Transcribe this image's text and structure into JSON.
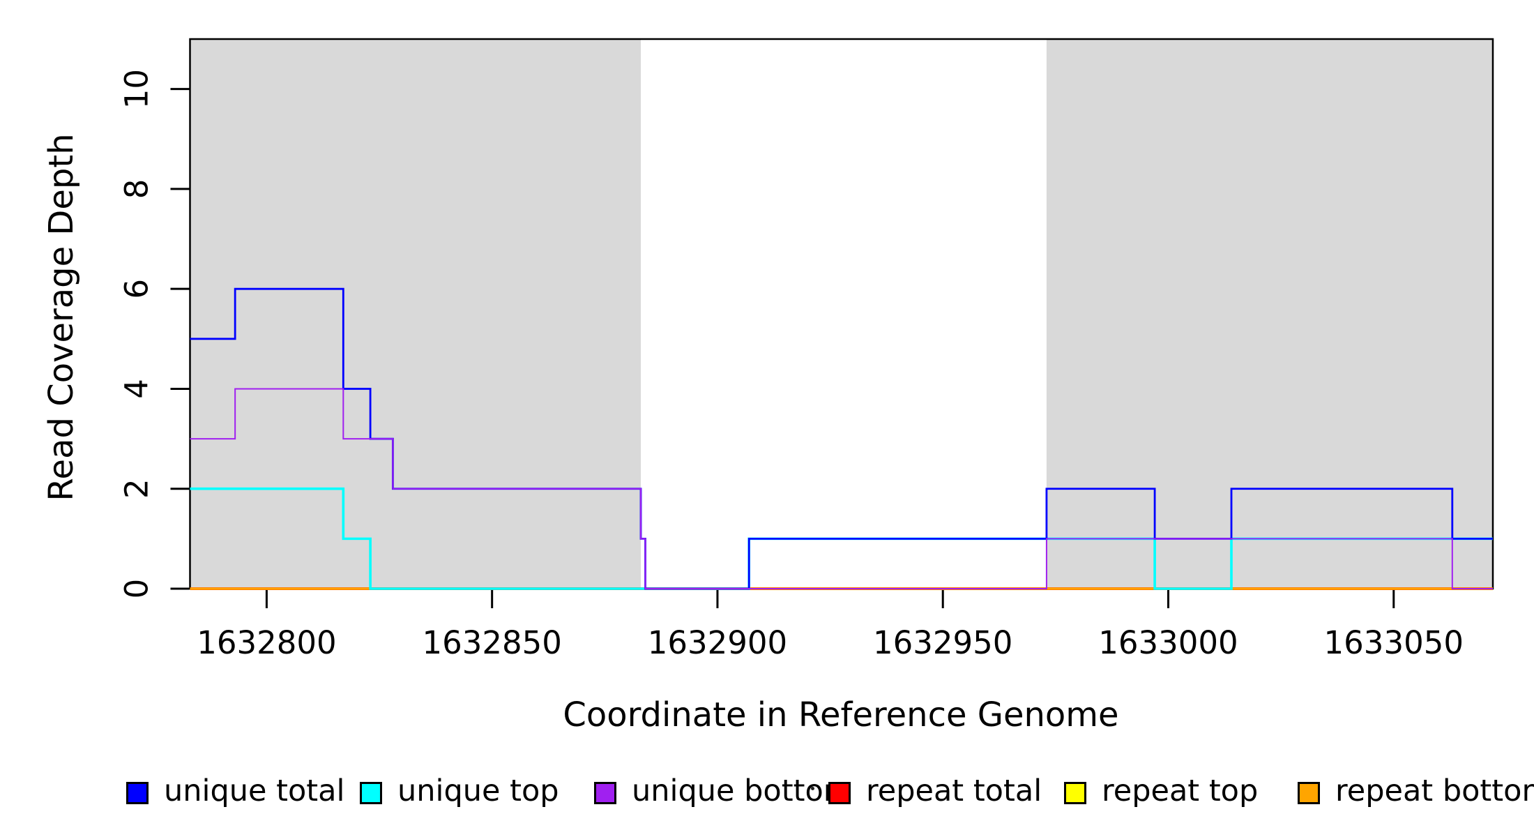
{
  "chart_data": {
    "type": "line",
    "subtype": "step-coverage-plot",
    "title": "",
    "xlabel": "Coordinate in Reference Genome",
    "ylabel": "Read Coverage Depth",
    "xlim": [
      1632783,
      1633072
    ],
    "ylim": [
      0,
      11
    ],
    "x_ticks": [
      1632800,
      1632850,
      1632900,
      1632950,
      1633000,
      1633050
    ],
    "y_ticks": [
      0,
      2,
      4,
      6,
      8,
      10
    ],
    "grid": false,
    "background_color": "#ffffff",
    "shaded_region_color": "#d9d9d9",
    "shaded_regions": [
      {
        "from": 1632783,
        "to": 1632883
      },
      {
        "from": 1632973,
        "to": 1633072
      }
    ],
    "series": [
      {
        "name": "repeat top",
        "color": "#FFFF00",
        "steps": [
          [
            1632783,
            0
          ],
          [
            1633072,
            0
          ]
        ]
      },
      {
        "name": "repeat total",
        "color": "#FF0000",
        "steps": [
          [
            1632783,
            0
          ],
          [
            1633072,
            0
          ]
        ]
      },
      {
        "name": "repeat bottom",
        "color": "#FFA500",
        "steps": [
          [
            1632783,
            0
          ],
          [
            1633072,
            0
          ]
        ]
      },
      {
        "name": "unique top",
        "color": "#00FFFF",
        "steps": [
          [
            1632783,
            2
          ],
          [
            1632817,
            1
          ],
          [
            1632823,
            0
          ],
          [
            1632907,
            1
          ],
          [
            1632997,
            0
          ],
          [
            1633014,
            1
          ],
          [
            1633072,
            1
          ]
        ]
      },
      {
        "name": "unique total",
        "color": "#0000FF",
        "steps": [
          [
            1632783,
            5
          ],
          [
            1632793,
            6
          ],
          [
            1632817,
            4
          ],
          [
            1632823,
            3
          ],
          [
            1632828,
            2
          ],
          [
            1632883,
            1
          ],
          [
            1632884,
            0
          ],
          [
            1632907,
            1
          ],
          [
            1632973,
            2
          ],
          [
            1632997,
            1
          ],
          [
            1633014,
            2
          ],
          [
            1633063,
            1
          ],
          [
            1633072,
            1
          ]
        ]
      },
      {
        "name": "unique bottom",
        "color": "#A020F0",
        "steps": [
          [
            1632783,
            3
          ],
          [
            1632793,
            4
          ],
          [
            1632817,
            3
          ],
          [
            1632828,
            2
          ],
          [
            1632883,
            1
          ],
          [
            1632884,
            0
          ],
          [
            1632973,
            1
          ],
          [
            1633063,
            0
          ],
          [
            1633072,
            0
          ]
        ]
      }
    ],
    "legend": {
      "position": "bottom",
      "entries": [
        {
          "label": "unique total",
          "color": "#0000FF"
        },
        {
          "label": "unique top",
          "color": "#00FFFF"
        },
        {
          "label": "unique bottom",
          "color": "#A020F0"
        },
        {
          "label": "repeat total",
          "color": "#FF0000"
        },
        {
          "label": "repeat top",
          "color": "#FFFF00"
        },
        {
          "label": "repeat bottom",
          "color": "#FFA500"
        }
      ]
    }
  }
}
